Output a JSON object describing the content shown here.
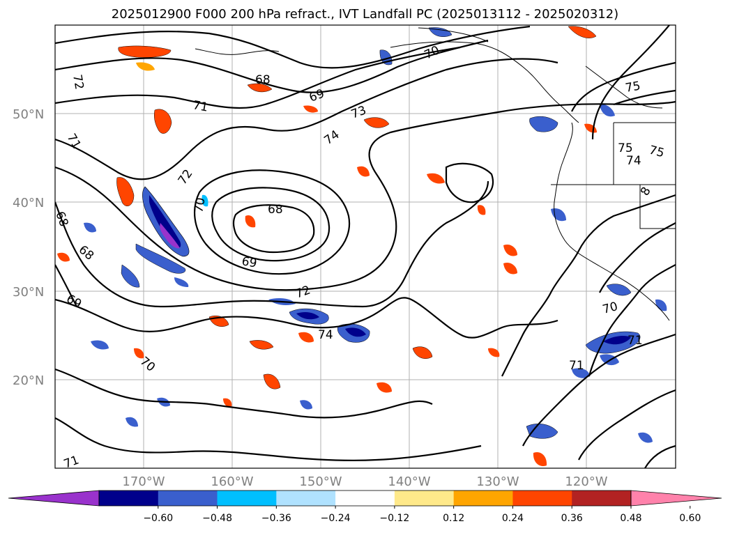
{
  "title": "2025012900 F000 200 hPa refract., IVT Landfall PC (2025013112 - 2025020312)",
  "map": {
    "lat_labels": [
      "50°N",
      "40°N",
      "30°N",
      "20°N"
    ],
    "lon_labels": [
      "170°W",
      "160°W",
      "150°W",
      "140°W",
      "130°W",
      "120°W"
    ],
    "contour_labels": [
      "72",
      "68",
      "69",
      "71",
      "70",
      "75",
      "73",
      "74",
      "71",
      "72",
      "75",
      "75",
      "74",
      "8",
      "70",
      "68",
      "68",
      "69",
      "72",
      "74",
      "68",
      "69",
      "70",
      "70",
      "71",
      "71",
      "71"
    ],
    "grid": true
  },
  "colorbar": {
    "ticks": [
      "−0.60",
      "−0.48",
      "−0.36",
      "−0.24",
      "−0.12",
      "0.12",
      "0.24",
      "0.36",
      "0.48",
      "0.60"
    ],
    "colors": [
      "#9932CC",
      "#00008B",
      "#3A5FCD",
      "#00BFFF",
      "#B0E2FF",
      "#FFFFFF",
      "#FFE98A",
      "#FFA500",
      "#FF4500",
      "#B22222",
      "#FF82AB"
    ]
  }
}
